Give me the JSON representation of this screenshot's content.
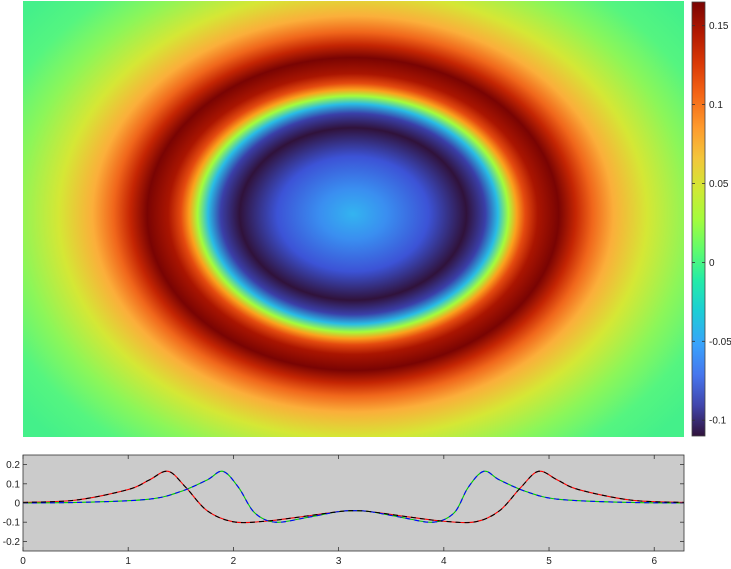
{
  "chart_data": [
    {
      "type": "heatmap",
      "description_of_field": "radially symmetric ring pattern",
      "colormap": "turbo",
      "colorbar": {
        "ticks": [
          0.15,
          0.1,
          0.05,
          0,
          -0.05,
          -0.1
        ],
        "tick_labels": [
          "0.15",
          "0.1",
          "0.05",
          "0",
          "-0.05",
          "-0.1"
        ],
        "clim": [
          -0.11,
          0.165
        ]
      },
      "field_levels": {
        "center": -0.055,
        "trough": -0.11,
        "ring_peak": 0.165,
        "background": 0.02
      },
      "axes_visible": false
    },
    {
      "type": "line",
      "xlim": [
        0,
        6.283
      ],
      "ylim": [
        -0.25,
        0.25
      ],
      "xticks": [
        0,
        1,
        2,
        3,
        4,
        5,
        6
      ],
      "xtick_labels": [
        "0",
        "1",
        "2",
        "3",
        "4",
        "5",
        "6"
      ],
      "yticks": [
        0.2,
        0.1,
        0,
        -0.1,
        -0.2
      ],
      "ytick_labels": [
        "0.2",
        "0.1",
        "0",
        "-0.1",
        "-0.2"
      ],
      "background": "#cbcbcb",
      "series": [
        {
          "color": "#ff0000",
          "style": "solid",
          "x": [
            0,
            0.5,
            1.0,
            1.2,
            1.38,
            1.55,
            1.75,
            2.0,
            2.3,
            2.6,
            3.0,
            3.1416,
            3.3,
            3.7,
            4.0,
            4.3,
            4.53,
            4.73,
            4.9,
            5.08,
            5.28,
            5.78,
            6.283
          ],
          "y": [
            0.003,
            0.015,
            0.07,
            0.12,
            0.165,
            0.08,
            -0.04,
            -0.098,
            -0.095,
            -0.075,
            -0.045,
            -0.04,
            -0.045,
            -0.075,
            -0.095,
            -0.098,
            -0.04,
            0.08,
            0.165,
            0.12,
            0.07,
            0.015,
            0.003
          ]
        },
        {
          "color": "#00cc00",
          "style": "solid",
          "x": [
            0,
            0.6,
            1.2,
            1.5,
            1.75,
            1.9,
            2.05,
            2.2,
            2.4,
            2.7,
            3.0,
            3.1416,
            3.3,
            3.6,
            3.9,
            4.1,
            4.23,
            4.38,
            4.53,
            4.78,
            5.08,
            5.68,
            6.283
          ],
          "y": [
            0.0,
            0.004,
            0.02,
            0.06,
            0.12,
            0.165,
            0.08,
            -0.05,
            -0.1,
            -0.075,
            -0.045,
            -0.04,
            -0.045,
            -0.075,
            -0.1,
            -0.05,
            0.08,
            0.165,
            0.12,
            0.06,
            0.02,
            0.004,
            0.0
          ]
        },
        {
          "color": "#0000ff",
          "style": "dashed",
          "x": [
            0,
            0.6,
            1.2,
            1.5,
            1.75,
            1.9,
            2.05,
            2.2,
            2.4,
            2.7,
            3.0,
            3.1416,
            3.3,
            3.6,
            3.9,
            4.1,
            4.23,
            4.38,
            4.53,
            4.78,
            5.08,
            5.68,
            6.283
          ],
          "y": [
            0.0,
            0.004,
            0.02,
            0.06,
            0.12,
            0.165,
            0.08,
            -0.05,
            -0.1,
            -0.075,
            -0.045,
            -0.04,
            -0.045,
            -0.075,
            -0.1,
            -0.05,
            0.08,
            0.165,
            0.12,
            0.06,
            0.02,
            0.004,
            0.0
          ]
        },
        {
          "color": "#000000",
          "style": "dashed",
          "x": [
            0,
            0.5,
            1.0,
            1.2,
            1.38,
            1.55,
            1.75,
            2.0,
            2.3,
            2.6,
            3.0,
            3.1416,
            3.3,
            3.7,
            4.0,
            4.3,
            4.53,
            4.73,
            4.9,
            5.08,
            5.28,
            5.78,
            6.283
          ],
          "y": [
            0.003,
            0.015,
            0.07,
            0.12,
            0.165,
            0.08,
            -0.04,
            -0.098,
            -0.095,
            -0.075,
            -0.045,
            -0.04,
            -0.045,
            -0.075,
            -0.095,
            -0.098,
            -0.04,
            0.08,
            0.165,
            0.12,
            0.07,
            0.015,
            0.003
          ]
        }
      ]
    }
  ]
}
